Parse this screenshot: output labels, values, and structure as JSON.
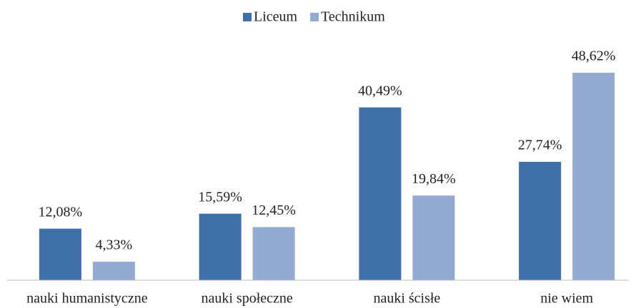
{
  "chart_data": {
    "type": "bar",
    "categories": [
      "nauki humanistyczne",
      "nauki społeczne",
      "nauki ścisłe",
      "nie wiem"
    ],
    "series": [
      {
        "name": "Liceum",
        "color": "#3e6fa7",
        "values": [
          12.08,
          15.59,
          40.49,
          27.74
        ],
        "value_labels": [
          "12,08%",
          "15,59%",
          "40,49%",
          "27,74%"
        ]
      },
      {
        "name": "Technikum",
        "color": "#93abd3",
        "values": [
          4.33,
          12.45,
          19.84,
          48.62
        ],
        "value_labels": [
          "4,33%",
          "12,45%",
          "19,84%",
          "48,62%"
        ]
      }
    ],
    "legend": "top"
  }
}
